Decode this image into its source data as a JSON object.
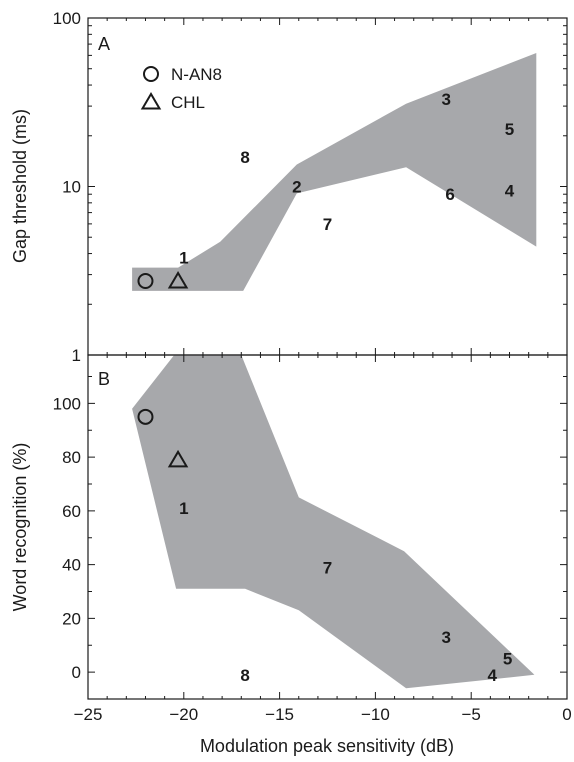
{
  "chart_data": [
    {
      "panel": "A",
      "type": "scatter",
      "xlabel": "Modulation peak sensitivity (dB)",
      "ylabel": "Gap threshold (ms)",
      "xlim": [
        -25,
        0
      ],
      "ylim": [
        1,
        100
      ],
      "yscale": "log",
      "xticks": [
        "−25",
        "−20",
        "−15",
        "−10",
        "−5",
        "0"
      ],
      "yticks": [
        "1",
        "10",
        "100"
      ],
      "legend": [
        {
          "marker": "circle",
          "label": "N-AN8"
        },
        {
          "marker": "triangle",
          "label": "CHL"
        }
      ],
      "legend_placement": "top-left",
      "shaded_region_color": "#a7a8ab",
      "shaded_region": [
        [
          -22.7,
          3.3
        ],
        [
          -20.3,
          3.3
        ],
        [
          -18.1,
          4.7
        ],
        [
          -14.1,
          13.5
        ],
        [
          -8.4,
          31
        ],
        [
          -1.6,
          62
        ],
        [
          -1.6,
          4.4
        ],
        [
          -8.4,
          13
        ],
        [
          -14.1,
          9.1
        ],
        [
          -16.9,
          2.4
        ],
        [
          -22.7,
          2.4
        ]
      ],
      "markers": [
        {
          "marker": "circle",
          "label": "N-AN8",
          "x": -22,
          "y": 2.75
        },
        {
          "marker": "triangle",
          "label": "CHL",
          "x": -20.3,
          "y": 2.75
        }
      ],
      "points": [
        {
          "label": "1",
          "x": -20,
          "y": 3.8
        },
        {
          "label": "2",
          "x": -14.1,
          "y": 10
        },
        {
          "label": "3",
          "x": -6.3,
          "y": 33
        },
        {
          "label": "4",
          "x": -3,
          "y": 9.5
        },
        {
          "label": "5",
          "x": -3,
          "y": 22
        },
        {
          "label": "6",
          "x": -6.1,
          "y": 9
        },
        {
          "label": "7",
          "x": -12.5,
          "y": 6
        },
        {
          "label": "8",
          "x": -16.8,
          "y": 15
        }
      ]
    },
    {
      "panel": "B",
      "type": "scatter",
      "xlabel": "Modulation peak sensitivity (dB)",
      "ylabel": "Word recognition (%)",
      "xlim": [
        -25,
        0
      ],
      "ylim": [
        -10,
        118
      ],
      "xticks": [
        "−25",
        "−20",
        "−15",
        "−10",
        "−5",
        "0"
      ],
      "yticks": [
        "0",
        "20",
        "40",
        "60",
        "80",
        "100"
      ],
      "shaded_region_color": "#a7a8ab",
      "shaded_region": [
        [
          -22.7,
          98
        ],
        [
          -20.5,
          118
        ],
        [
          -17,
          118
        ],
        [
          -14,
          65
        ],
        [
          -8.5,
          45
        ],
        [
          -1.7,
          -1
        ],
        [
          -8.4,
          -6
        ],
        [
          -14,
          23
        ],
        [
          -16.8,
          31
        ],
        [
          -20.4,
          31
        ]
      ],
      "markers": [
        {
          "marker": "circle",
          "label": "N-AN8",
          "x": -22,
          "y": 95
        },
        {
          "marker": "triangle",
          "label": "CHL",
          "x": -20.3,
          "y": 79
        }
      ],
      "points": [
        {
          "label": "1",
          "x": -20,
          "y": 61
        },
        {
          "label": "3",
          "x": -6.3,
          "y": 13
        },
        {
          "label": "4",
          "x": -3.9,
          "y": -1
        },
        {
          "label": "5",
          "x": -3.1,
          "y": 5
        },
        {
          "label": "7",
          "x": -12.5,
          "y": 39
        },
        {
          "label": "8",
          "x": -16.8,
          "y": -1
        }
      ]
    }
  ]
}
